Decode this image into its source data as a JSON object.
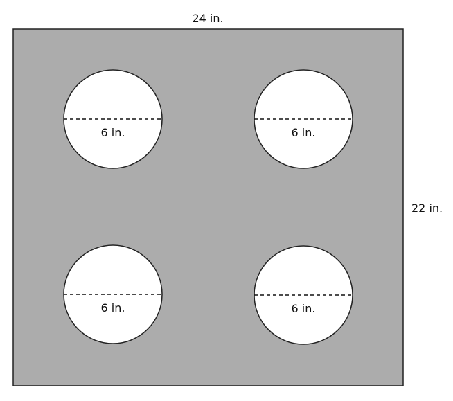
{
  "diagram": {
    "top_dimension_label": "24 in.",
    "right_dimension_label": "22 in.",
    "colors": {
      "sheet_fill": "#acacac",
      "outline": "#222222",
      "cutout_fill": "#ffffff",
      "text": "#111111"
    },
    "circles": [
      {
        "diameter_label": "6 in."
      },
      {
        "diameter_label": "6 in."
      },
      {
        "diameter_label": "6 in."
      },
      {
        "diameter_label": "6 in."
      }
    ]
  }
}
